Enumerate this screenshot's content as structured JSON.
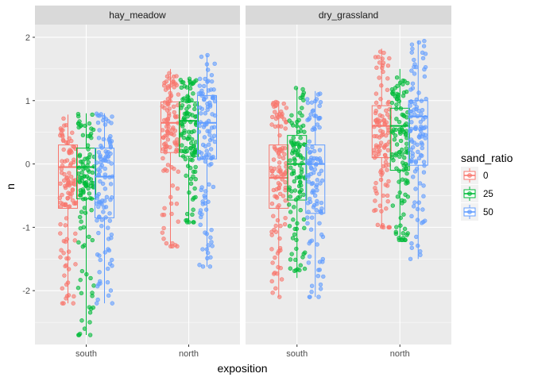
{
  "chart_data": {
    "type": "boxplot",
    "xlabel": "exposition",
    "ylabel": "n",
    "ylim": [
      -2.85,
      2.2
    ],
    "y_ticks": [
      "-2",
      "-1",
      "0",
      "1",
      "2"
    ],
    "y_tick_values": [
      -2,
      -1,
      0,
      1,
      2
    ],
    "categories": [
      "south",
      "north"
    ],
    "legend": {
      "title": "sand_ratio",
      "position": "right"
    },
    "series": [
      {
        "name": "0",
        "color": "#F8766D"
      },
      {
        "name": "25",
        "color": "#00BA38"
      },
      {
        "name": "50",
        "color": "#619CFF"
      }
    ],
    "grid": true,
    "facets": [
      {
        "label": "hay_meadow",
        "groups": [
          {
            "category": "south",
            "series": "0",
            "q1": -0.7,
            "median": -0.05,
            "q3": 0.3,
            "whisker_low": -2.2,
            "whisker_high": 0.78
          },
          {
            "category": "south",
            "series": "25",
            "q1": -0.55,
            "median": -0.05,
            "q3": 0.25,
            "whisker_low": -2.7,
            "whisker_high": 0.8
          },
          {
            "category": "south",
            "series": "50",
            "q1": -0.85,
            "median": -0.2,
            "q3": 0.25,
            "whisker_low": -2.2,
            "whisker_high": 0.8
          },
          {
            "category": "north",
            "series": "0",
            "q1": 0.18,
            "median": 0.65,
            "q3": 0.98,
            "whisker_low": -1.3,
            "whisker_high": 1.5
          },
          {
            "category": "north",
            "series": "25",
            "q1": 0.12,
            "median": 0.68,
            "q3": 0.98,
            "whisker_low": -0.92,
            "whisker_high": 1.35
          },
          {
            "category": "north",
            "series": "50",
            "q1": 0.08,
            "median": 0.65,
            "q3": 1.08,
            "whisker_low": -1.62,
            "whisker_high": 1.72
          }
        ]
      },
      {
        "label": "dry_grassland",
        "groups": [
          {
            "category": "south",
            "series": "0",
            "q1": -0.7,
            "median": -0.22,
            "q3": 0.3,
            "whisker_low": -2.1,
            "whisker_high": 0.98
          },
          {
            "category": "south",
            "series": "25",
            "q1": -0.57,
            "median": 0.0,
            "q3": 0.45,
            "whisker_low": -1.8,
            "whisker_high": 1.2
          },
          {
            "category": "south",
            "series": "50",
            "q1": -0.78,
            "median": 0.0,
            "q3": 0.3,
            "whisker_low": -2.1,
            "whisker_high": 1.15
          },
          {
            "category": "north",
            "series": "0",
            "q1": 0.1,
            "median": 0.6,
            "q3": 0.92,
            "whisker_low": -1.0,
            "whisker_high": 1.82
          },
          {
            "category": "north",
            "series": "25",
            "q1": -0.1,
            "median": 0.6,
            "q3": 0.88,
            "whisker_low": -1.2,
            "whisker_high": 1.5
          },
          {
            "category": "north",
            "series": "50",
            "q1": -0.02,
            "median": 0.75,
            "q3": 1.0,
            "whisker_low": -1.5,
            "whisker_high": 1.95
          }
        ]
      }
    ]
  }
}
